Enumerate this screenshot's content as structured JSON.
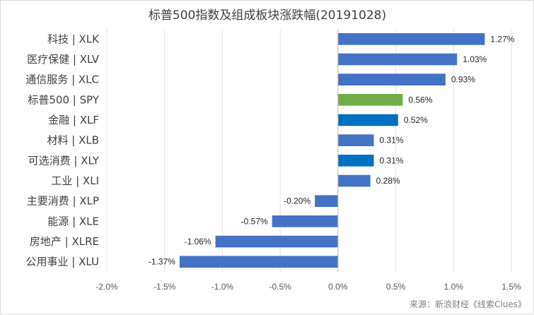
{
  "chart_data": {
    "type": "bar",
    "orientation": "horizontal",
    "title": "标普500指数及组成板块涨跌幅(20191028)",
    "source": "来源：新浪财经《线索Clues》",
    "categories": [
      "科技 | XLK",
      "医疗保健 | XLV",
      "通信服务 | XLC",
      "标普500 | SPY",
      "金融 | XLF",
      "材料 | XLB",
      "可选消费 | XLY",
      "工业 | XLI",
      "主要消费 | XLP",
      "能源 | XLE",
      "房地产 | XLRE",
      "公用事业 | XLU"
    ],
    "values": [
      1.27,
      1.03,
      0.93,
      0.56,
      0.52,
      0.31,
      0.31,
      0.28,
      -0.2,
      -0.57,
      -1.06,
      -1.37
    ],
    "data_labels": [
      "1.27%",
      "1.03%",
      "0.93%",
      "0.56%",
      "0.52%",
      "0.31%",
      "0.31%",
      "0.28%",
      "-0.20%",
      "-0.57%",
      "-1.06%",
      "-1.37%"
    ],
    "colors": [
      "#4472c4",
      "#4472c4",
      "#4472c4",
      "#70ad47",
      "#0070c0",
      "#4472c4",
      "#0070c0",
      "#4472c4",
      "#4472c4",
      "#4472c4",
      "#4472c4",
      "#4472c4"
    ],
    "xlim": [
      -2.0,
      1.5
    ],
    "x_ticks": [
      -2.0,
      -1.5,
      -1.0,
      -0.5,
      0.0,
      0.5,
      1.0,
      1.5
    ],
    "x_tick_labels": [
      "-2.0%",
      "-1.5%",
      "-1.0%",
      "-0.5%",
      "0.0%",
      "0.5%",
      "1.0%",
      "1.5%"
    ],
    "xlabel": "",
    "ylabel": "",
    "grid": true,
    "legend": "none"
  }
}
